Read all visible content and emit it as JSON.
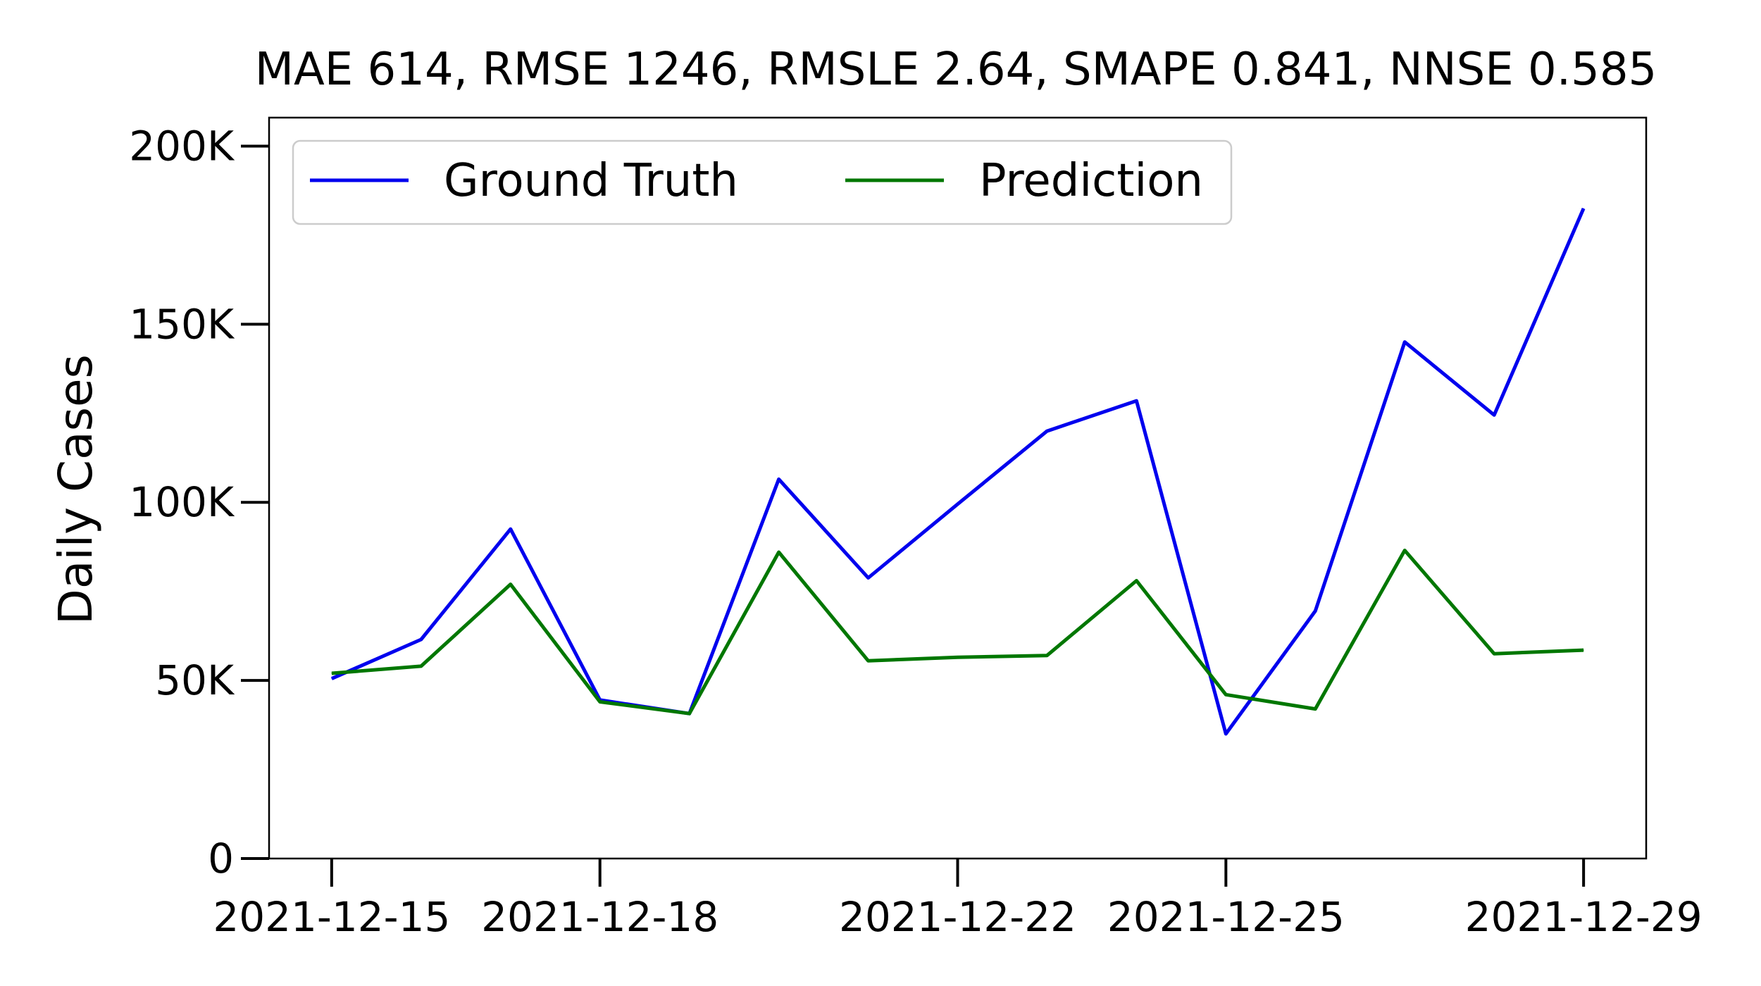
{
  "chart_data": {
    "type": "line",
    "title": "MAE 614, RMSE 1246, RMSLE 2.64, SMAPE 0.841, NNSE 0.585",
    "xlabel": "",
    "ylabel": "Daily Cases",
    "x": [
      "2021-12-15",
      "2021-12-16",
      "2021-12-17",
      "2021-12-18",
      "2021-12-19",
      "2021-12-20",
      "2021-12-21",
      "2021-12-22",
      "2021-12-23",
      "2021-12-24",
      "2021-12-25",
      "2021-12-26",
      "2021-12-27",
      "2021-12-28",
      "2021-12-29"
    ],
    "x_ticks": [
      "2021-12-15",
      "2021-12-18",
      "2021-12-22",
      "2021-12-25",
      "2021-12-29"
    ],
    "y_ticks": [
      {
        "value": 0,
        "label": "0"
      },
      {
        "value": 50000,
        "label": "50K"
      },
      {
        "value": 100000,
        "label": "100K"
      },
      {
        "value": 150000,
        "label": "150K"
      },
      {
        "value": 200000,
        "label": "200K"
      }
    ],
    "ylim": [
      0,
      208000
    ],
    "xlim": [
      "2021-12-14",
      "2021-12-30"
    ],
    "grid": false,
    "legend_position": "top-left",
    "series": [
      {
        "name": "Ground Truth",
        "color": "#0000ee",
        "values": [
          50500,
          61500,
          92500,
          44500,
          40700,
          106500,
          78800,
          99500,
          120000,
          128500,
          35000,
          69500,
          145000,
          124500,
          182500
        ]
      },
      {
        "name": "Prediction",
        "color": "#007700",
        "values": [
          52000,
          54000,
          77000,
          44000,
          40700,
          86000,
          55500,
          56500,
          57000,
          78000,
          46000,
          42000,
          86500,
          57500,
          58500
        ]
      }
    ]
  }
}
